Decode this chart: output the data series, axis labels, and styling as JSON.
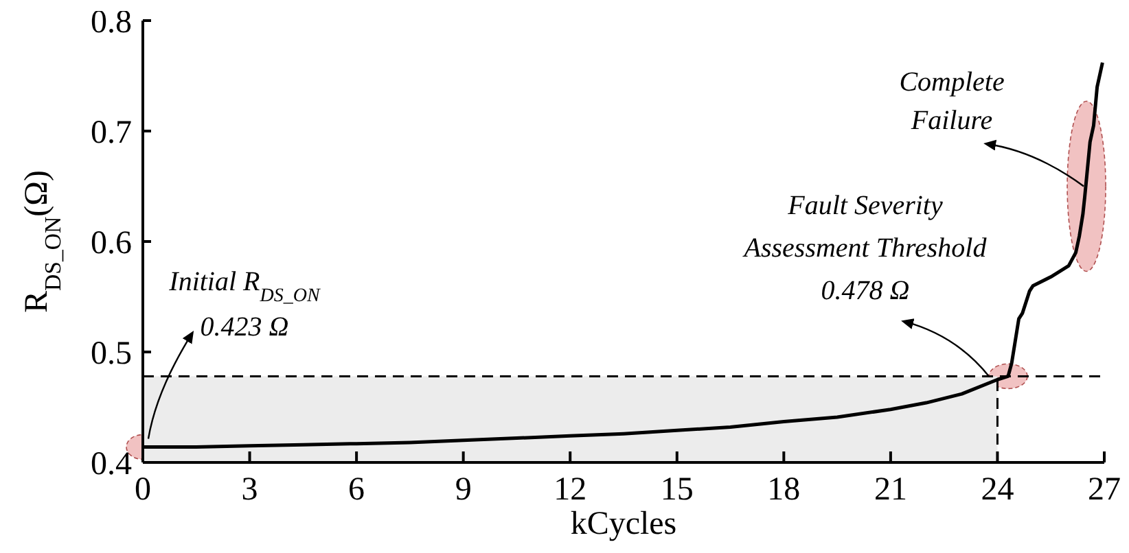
{
  "chart_data": {
    "type": "line",
    "xlabel": "kCycles",
    "ylabel": "R$_{DS_ON}$(Ω)",
    "x": [
      0,
      1.5,
      3,
      4.5,
      6,
      7.5,
      9,
      10.5,
      12,
      13.5,
      15,
      16.5,
      18,
      19.5,
      21,
      22,
      23,
      24,
      24.3,
      24.4,
      24.5,
      24.6,
      24.7,
      24.9,
      25,
      25.5,
      26,
      26.2,
      26.3,
      26.4,
      26.45,
      26.6,
      26.7,
      26.8,
      26.95
    ],
    "series": [
      {
        "color": "#000000",
        "values": [
          0.414,
          0.414,
          0.415,
          0.416,
          0.417,
          0.418,
          0.42,
          0.422,
          0.424,
          0.426,
          0.429,
          0.432,
          0.437,
          0.441,
          0.448,
          0.454,
          0.462,
          0.475,
          0.478,
          0.49,
          0.51,
          0.53,
          0.535,
          0.555,
          0.56,
          0.568,
          0.578,
          0.59,
          0.605,
          0.625,
          0.64,
          0.69,
          0.705,
          0.74,
          0.762
        ]
      }
    ],
    "xlim": [
      0,
      27
    ],
    "xticks": [
      0,
      3,
      6,
      9,
      12,
      15,
      18,
      21,
      24,
      27
    ],
    "ylim": [
      0.4,
      0.8
    ],
    "yticks": [
      0.4,
      0.5,
      0.6,
      0.7,
      0.8
    ],
    "grid": false,
    "legend": false,
    "marker": "none",
    "line_style": "solid",
    "ref_lines": [
      {
        "axis": "y",
        "value": 0.478,
        "line_style": "dashed",
        "color": "#000000"
      },
      {
        "axis": "x",
        "value": 24,
        "line_style": "dashed",
        "color": "#000000"
      }
    ],
    "bands": [
      {
        "axis": "x",
        "from": 0,
        "to": 24,
        "color": "#ececec"
      }
    ],
    "annotations": [
      {
        "text": "Initial R$_{DS_ON}$\n0.423 Ω",
        "x": 0,
        "y": 0.414
      },
      {
        "text": "Fault Severity\nAssessment Threshold\n0.478 Ω",
        "x": 24.3,
        "y": 0.478
      },
      {
        "text": "Complete\nFailure",
        "x": 26.5,
        "y": 0.65
      }
    ]
  }
}
